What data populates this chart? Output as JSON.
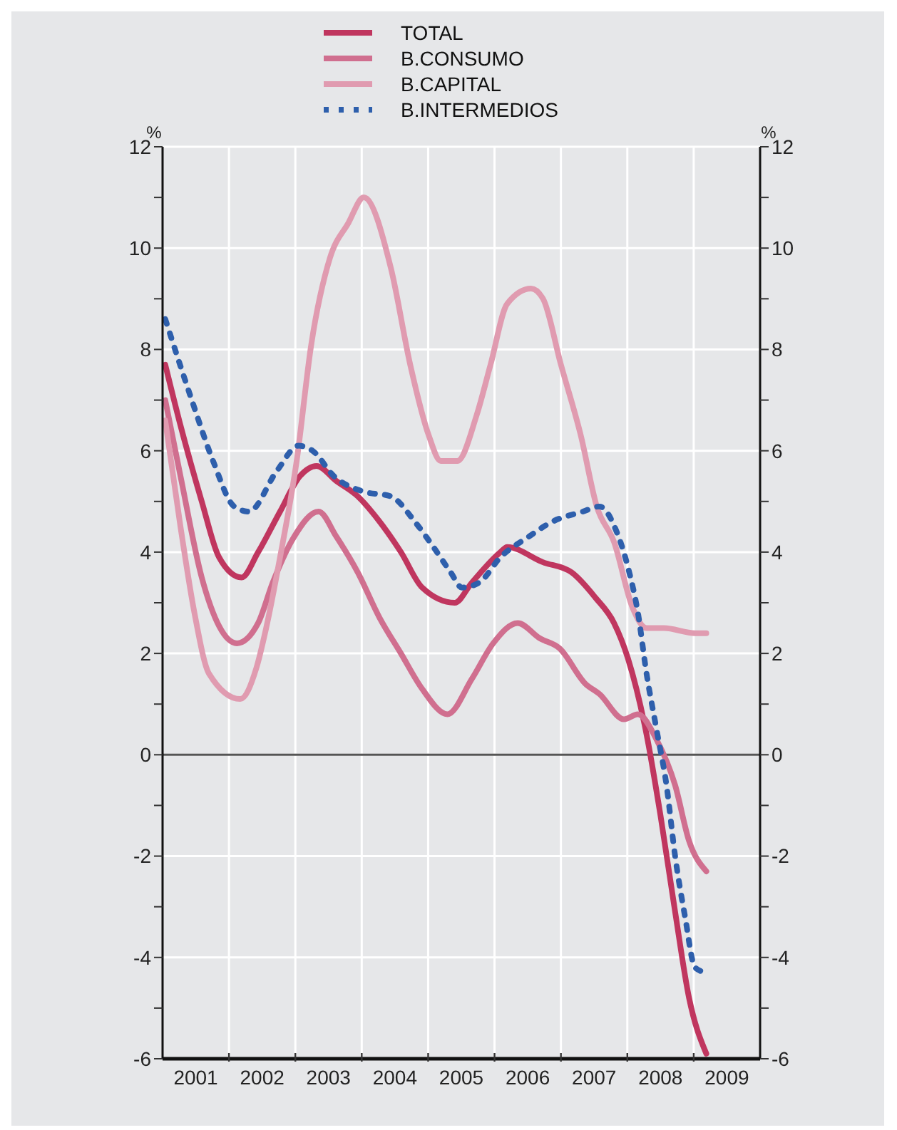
{
  "chart_data": {
    "type": "line",
    "ylabel": "%",
    "y2label": "%",
    "xlim": [
      2001,
      2010
    ],
    "xticks": [
      {
        "value": 2002,
        "label": null
      },
      {
        "value": 2003,
        "label": null
      },
      {
        "value": 2004,
        "label": null
      },
      {
        "value": 2005,
        "label": null
      },
      {
        "value": 2006,
        "label": null
      },
      {
        "value": 2007,
        "label": null
      },
      {
        "value": 2008,
        "label": null
      },
      {
        "value": 2009,
        "label": null
      },
      {
        "value": 2001.5,
        "label": "2001"
      },
      {
        "value": 2002.5,
        "label": "2002"
      },
      {
        "value": 2003.5,
        "label": "2003"
      },
      {
        "value": 2004.5,
        "label": "2004"
      },
      {
        "value": 2005.5,
        "label": "2005"
      },
      {
        "value": 2006.5,
        "label": "2006"
      },
      {
        "value": 2007.5,
        "label": "2007"
      },
      {
        "value": 2008.5,
        "label": "2008"
      },
      {
        "value": 2009.5,
        "label": "2009"
      }
    ],
    "ylim": [
      -6,
      12
    ],
    "yticks": [
      -6,
      {
        "value": -5,
        "label": null
      },
      -4,
      {
        "value": -3,
        "label": null
      },
      -2,
      {
        "value": -1,
        "label": null
      },
      0,
      {
        "value": 1,
        "label": null
      },
      2,
      {
        "value": 3,
        "label": null
      },
      4,
      {
        "value": 5,
        "label": null
      },
      6,
      {
        "value": 7,
        "label": null
      },
      8,
      {
        "value": 9,
        "label": null
      },
      10,
      {
        "value": 11,
        "label": null
      },
      12
    ],
    "y2lim": [
      -6,
      12
    ],
    "y2ticks": [
      -6,
      {
        "value": -5,
        "label": null
      },
      -4,
      {
        "value": -3,
        "label": null
      },
      -2,
      {
        "value": -1,
        "label": null
      },
      0,
      {
        "value": 1,
        "label": null
      },
      2,
      {
        "value": 3,
        "label": null
      },
      4,
      {
        "value": 5,
        "label": null
      },
      6,
      {
        "value": 7,
        "label": null
      },
      8,
      {
        "value": 9,
        "label": null
      },
      10,
      {
        "value": 11,
        "label": null
      },
      12
    ],
    "grid": true,
    "legend": "top",
    "marker": "none",
    "line_style": "solid",
    "ref_lines": [
      {
        "axis": "y",
        "value": 0,
        "color": "#555555"
      }
    ],
    "series": [
      {
        "name": "TOTAL",
        "color": "#c0365f",
        "x": [
          2001.04,
          2001.27,
          2001.59,
          2001.85,
          2002.19,
          2002.44,
          2002.77,
          2003.07,
          2003.32,
          2003.62,
          2003.94,
          2004.27,
          2004.59,
          2004.91,
          2005.4,
          2005.66,
          2006.09,
          2006.19,
          2006.73,
          2007.16,
          2007.52,
          2007.8,
          2008.01,
          2008.29,
          2008.5,
          2008.72,
          2008.93,
          2009.19
        ],
        "values": [
          7.7,
          6.5,
          5.0,
          3.9,
          3.5,
          4.0,
          4.8,
          5.5,
          5.7,
          5.4,
          5.1,
          4.6,
          4.0,
          3.3,
          3.0,
          3.4,
          4.0,
          4.1,
          3.8,
          3.6,
          3.1,
          2.6,
          1.9,
          0.4,
          -1.2,
          -3.1,
          -4.8,
          -5.9
        ]
      },
      {
        "name": "B.CONSUMO",
        "color": "#d06f8f",
        "x": [
          2001.04,
          2001.27,
          2001.59,
          2002.12,
          2002.44,
          2002.66,
          2002.98,
          2003.35,
          2003.62,
          2003.94,
          2004.27,
          2004.59,
          2004.91,
          2005.29,
          2005.66,
          2005.98,
          2006.35,
          2006.68,
          2006.98,
          2007.37,
          2007.58,
          2007.95,
          2008.16,
          2008.44,
          2008.72,
          2008.93,
          2009.19
        ],
        "values": [
          7.0,
          5.5,
          3.5,
          2.2,
          2.6,
          3.4,
          4.3,
          4.8,
          4.3,
          3.6,
          2.7,
          2.0,
          1.3,
          0.8,
          1.5,
          2.2,
          2.6,
          2.3,
          2.1,
          1.4,
          1.2,
          0.7,
          0.8,
          0.3,
          -0.6,
          -1.7,
          -2.3
        ]
      },
      {
        "name": "B.CAPITAL",
        "color": "#e09bb0",
        "x": [
          2001.04,
          2001.27,
          2001.48,
          2001.7,
          2002.17,
          2002.41,
          2002.56,
          2002.77,
          2003.02,
          2003.24,
          2003.52,
          2003.8,
          2004.03,
          2004.44,
          2004.73,
          2005.01,
          2005.19,
          2005.44,
          2005.73,
          2005.94,
          2006.19,
          2006.55,
          2006.73,
          2007.0,
          2007.3,
          2007.54,
          2007.8,
          2008.08,
          2008.29,
          2008.55,
          2009.02,
          2009.19
        ],
        "values": [
          6.6,
          4.5,
          2.8,
          1.6,
          1.1,
          1.7,
          2.5,
          3.9,
          5.8,
          8.1,
          9.8,
          10.5,
          11.0,
          9.6,
          7.7,
          6.3,
          5.8,
          5.8,
          6.7,
          7.7,
          8.9,
          9.2,
          9.0,
          7.7,
          6.3,
          4.9,
          4.2,
          2.9,
          2.5,
          2.5,
          2.4,
          2.4
        ]
      },
      {
        "name": "B.INTERMEDIOS",
        "color": "#2e5fac",
        "line_style": "dotted",
        "x": [
          2001.04,
          2001.44,
          2001.76,
          2002.08,
          2002.3,
          2002.72,
          2003.05,
          2003.26,
          2003.58,
          2004.01,
          2004.44,
          2004.8,
          2005.08,
          2005.34,
          2005.51,
          2005.77,
          2006.09,
          2006.51,
          2006.87,
          2007.33,
          2007.58,
          2007.84,
          2008.01,
          2008.16,
          2008.29,
          2008.44,
          2008.59,
          2008.72,
          2008.87,
          2009.02,
          2009.19
        ],
        "values": [
          8.6,
          7.0,
          5.8,
          4.9,
          4.8,
          5.6,
          6.1,
          6.0,
          5.5,
          5.2,
          5.1,
          4.6,
          4.1,
          3.6,
          3.3,
          3.4,
          3.9,
          4.3,
          4.6,
          4.8,
          4.9,
          4.4,
          3.7,
          2.8,
          1.6,
          0.5,
          -0.6,
          -2.0,
          -3.2,
          -4.2,
          -4.3
        ]
      }
    ]
  }
}
